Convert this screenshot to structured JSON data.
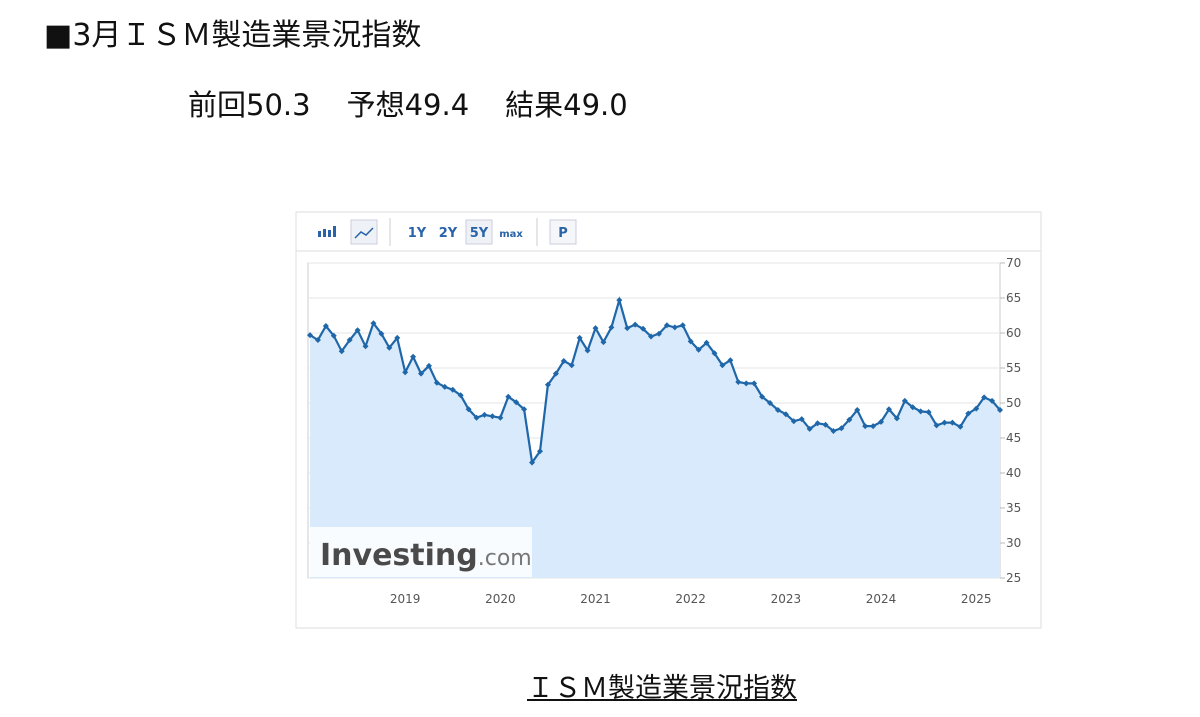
{
  "header": {
    "title": "■3月ＩＳＭ製造業景況指数",
    "summary": [
      "前回50.3",
      "予想49.4",
      "結果49.0"
    ]
  },
  "toolbar": [
    "1Y",
    "2Y",
    "5Y",
    "max",
    "P"
  ],
  "watermark": {
    "brand": "Investing",
    "suffix": ".com"
  },
  "caption": "ＩＳＭ製造業景況指数",
  "chart_data": {
    "type": "line",
    "color": "#1f67a8",
    "area_color": "#d8eafc",
    "grid": true,
    "y_axis_side": "right",
    "categories": [
      null,
      null,
      null,
      null,
      null,
      null,
      null,
      null,
      null,
      null,
      null,
      null,
      "2019",
      null,
      null,
      null,
      null,
      null,
      null,
      null,
      null,
      null,
      null,
      null,
      "2020",
      null,
      null,
      null,
      null,
      null,
      null,
      null,
      null,
      null,
      null,
      null,
      "2021",
      null,
      null,
      null,
      null,
      null,
      null,
      null,
      null,
      null,
      null,
      null,
      "2022",
      null,
      null,
      null,
      null,
      null,
      null,
      null,
      null,
      null,
      null,
      null,
      "2023",
      null,
      null,
      null,
      null,
      null,
      null,
      null,
      null,
      null,
      null,
      null,
      "2024",
      null,
      null,
      null,
      null,
      null,
      null,
      null,
      null,
      null,
      null,
      null,
      "2025",
      null,
      null,
      null
    ],
    "values": [
      59.7,
      59,
      61,
      59.6,
      57.4,
      59,
      60.4,
      58.1,
      61.4,
      59.9,
      57.9,
      59.3,
      54.4,
      56.6,
      54.2,
      55.3,
      52.9,
      52.3,
      51.9,
      51.1,
      49.1,
      47.9,
      48.3,
      48.1,
      47.9,
      50.9,
      50.1,
      49.1,
      41.5,
      43.1,
      52.6,
      54.2,
      56,
      55.4,
      59.3,
      57.5,
      60.7,
      58.7,
      60.8,
      64.7,
      60.7,
      61.2,
      60.6,
      59.5,
      59.9,
      61.1,
      60.8,
      61.1,
      58.8,
      57.6,
      58.6,
      57.1,
      55.4,
      56.1,
      53,
      52.8,
      52.8,
      50.9,
      50,
      49,
      48.4,
      47.4,
      47.7,
      46.3,
      47.1,
      46.9,
      46,
      46.4,
      47.6,
      49,
      46.7,
      46.7,
      47.3,
      49.1,
      47.8,
      50.3,
      49.4,
      48.8,
      48.7,
      46.8,
      47.2,
      47.2,
      46.6,
      48.5,
      49.2,
      50.8,
      50.3,
      49.0
    ],
    "ylim": [
      25,
      70
    ],
    "yticks": [
      25,
      30,
      35,
      40,
      45,
      50,
      55,
      60,
      65,
      70
    ]
  }
}
